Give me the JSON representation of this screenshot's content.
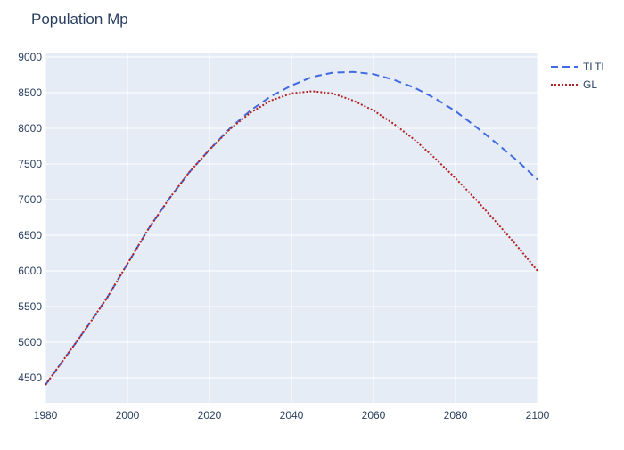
{
  "chart_data": {
    "type": "line",
    "title": "Population Mp",
    "xlabel": "",
    "ylabel": "",
    "xlim": [
      1980,
      2100
    ],
    "ylim": [
      4150,
      9050
    ],
    "x_ticks": [
      1980,
      2000,
      2020,
      2040,
      2060,
      2080,
      2100
    ],
    "y_ticks": [
      4500,
      5000,
      5500,
      6000,
      6500,
      7000,
      7500,
      8000,
      8500,
      9000
    ],
    "grid": true,
    "legend": "top-right",
    "x": [
      1980,
      1985,
      1990,
      1995,
      2000,
      2005,
      2010,
      2015,
      2020,
      2025,
      2030,
      2035,
      2040,
      2045,
      2050,
      2055,
      2060,
      2065,
      2070,
      2075,
      2080,
      2085,
      2090,
      2095,
      2100
    ],
    "series": [
      {
        "name": "TLTL",
        "color": "#4169e1",
        "dash": "dashed",
        "values": [
          4400,
          4800,
          5200,
          5620,
          6100,
          6580,
          7000,
          7380,
          7700,
          8000,
          8250,
          8450,
          8600,
          8720,
          8780,
          8790,
          8760,
          8680,
          8570,
          8420,
          8240,
          8020,
          7790,
          7550,
          7280
        ]
      },
      {
        "name": "GL",
        "color": "#b22222",
        "dash": "dotted",
        "values": [
          4400,
          4800,
          5200,
          5620,
          6100,
          6580,
          7000,
          7380,
          7700,
          7990,
          8220,
          8390,
          8490,
          8520,
          8490,
          8390,
          8250,
          8060,
          7840,
          7580,
          7300,
          7000,
          6680,
          6350,
          6000
        ]
      }
    ]
  }
}
